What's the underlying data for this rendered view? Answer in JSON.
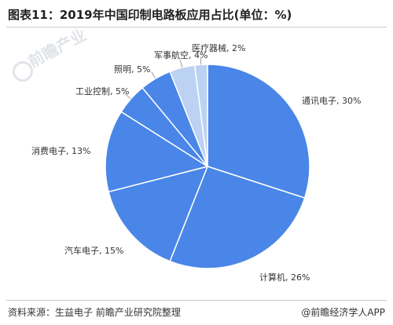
{
  "title": "图表11：2019年中国印制电路板应用占比(单位：%)",
  "source": "资料来源：生益电子 前瞻产业研究院整理",
  "credit": "@前瞻经济学人APP",
  "watermark": "前瞻产业",
  "colors": {
    "slice_primary": "#4a86e8",
    "slice_light": "#bcd2f3",
    "slice_edge": "#ffffff",
    "leader": "#888888"
  },
  "chart_data": {
    "type": "pie",
    "title": "图表11：2019年中国印制电路板应用占比(单位：%)",
    "unit": "%",
    "slices": [
      {
        "name": "通讯电子",
        "value": 30,
        "label": "通讯电子, 30%"
      },
      {
        "name": "计算机",
        "value": 26,
        "label": "计算机, 26%"
      },
      {
        "name": "汽车电子",
        "value": 15,
        "label": "汽车电子, 15%"
      },
      {
        "name": "消费电子",
        "value": 13,
        "label": "消费电子, 13%"
      },
      {
        "name": "工业控制",
        "value": 5,
        "label": "工业控制, 5%"
      },
      {
        "name": "照明",
        "value": 5,
        "label": "照明, 5%"
      },
      {
        "name": "军事航空",
        "value": 4,
        "label": "军事航空, 4%"
      },
      {
        "name": "医疗器械",
        "value": 2,
        "label": "医疗器械, 2%"
      }
    ]
  }
}
